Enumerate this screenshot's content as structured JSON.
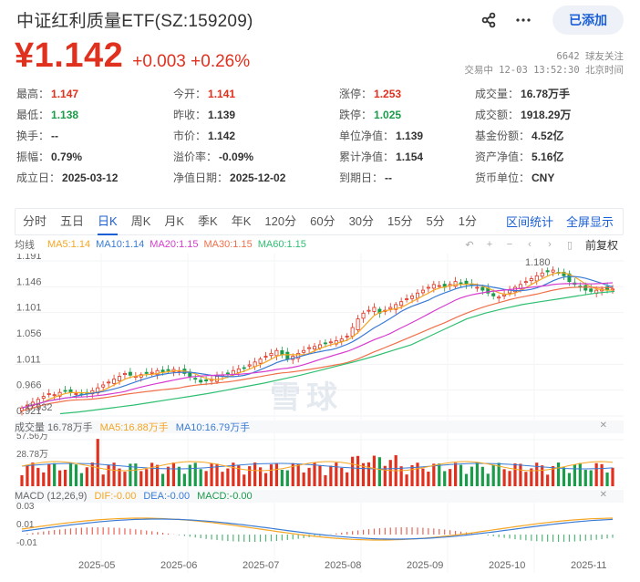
{
  "header": {
    "title": "中证红利质量ETF(SZ:159209)",
    "price": "¥1.142",
    "change": "+0.003 +0.26%",
    "followers": "6642 球友关注",
    "status": "交易中 12-03 13:52:30 北京时间",
    "added_label": "已添加",
    "share_icon": "share-icon",
    "more_icon": "more-icon"
  },
  "stats": [
    {
      "key": "最高：",
      "value": "1.147",
      "color": "red"
    },
    {
      "key": "今开：",
      "value": "1.141",
      "color": "red"
    },
    {
      "key": "涨停：",
      "value": "1.253",
      "color": "red"
    },
    {
      "key": "成交量：",
      "value": "16.78万手",
      "color": ""
    },
    {
      "key": "最低：",
      "value": "1.138",
      "color": "green"
    },
    {
      "key": "昨收：",
      "value": "1.139",
      "color": ""
    },
    {
      "key": "跌停：",
      "value": "1.025",
      "color": "green"
    },
    {
      "key": "成交额：",
      "value": "1918.29万",
      "color": ""
    },
    {
      "key": "换手：",
      "value": "--",
      "color": ""
    },
    {
      "key": "市价：",
      "value": "1.142",
      "color": ""
    },
    {
      "key": "单位净值：",
      "value": "1.139",
      "color": ""
    },
    {
      "key": "基金份额：",
      "value": "4.52亿",
      "color": ""
    },
    {
      "key": "振幅：",
      "value": "0.79%",
      "color": ""
    },
    {
      "key": "溢价率：",
      "value": "-0.09%",
      "color": ""
    },
    {
      "key": "累计净值：",
      "value": "1.154",
      "color": ""
    },
    {
      "key": "资产净值：",
      "value": "5.16亿",
      "color": ""
    },
    {
      "key": "成立日：",
      "value": "2025-03-12",
      "color": ""
    },
    {
      "key": "净值日期：",
      "value": "2025-12-02",
      "color": ""
    },
    {
      "key": "到期日：",
      "value": "--",
      "color": ""
    },
    {
      "key": "货币单位：",
      "value": "CNY",
      "color": ""
    }
  ],
  "chart_tabs": [
    "分时",
    "五日",
    "日K",
    "周K",
    "月K",
    "季K",
    "年K",
    "120分",
    "60分",
    "30分",
    "15分",
    "5分",
    "1分"
  ],
  "active_tab": "日K",
  "chart_links": [
    "区间统计",
    "全屏显示"
  ],
  "ma_label": "均线",
  "ma_legend": [
    {
      "label": "MA5:1.14",
      "color": "#f5a623"
    },
    {
      "label": "MA10:1.14",
      "color": "#3a7bd5"
    },
    {
      "label": "MA20:1.15",
      "color": "#d63ccf"
    },
    {
      "label": "MA30:1.15",
      "color": "#f0704a"
    },
    {
      "label": "MA60:1.15",
      "color": "#2fbf71"
    }
  ],
  "tools": [
    "↶",
    "+",
    "−",
    "‹",
    "›",
    "▯"
  ],
  "adjust_label": "前复权",
  "volume_header": {
    "label": "成交量 16.78万手",
    "ma5": "MA5:16.88万手",
    "ma10": "MA10:16.79万手"
  },
  "macd_header": {
    "label": "MACD (12,26,9)",
    "dif": "DIF:-0.00",
    "dea": "DEA:-0.00",
    "macd": "MACD:-0.00"
  },
  "watermark": "雪球",
  "chart_data": {
    "type": "candlestick",
    "title": "中证红利质量ETF 日K",
    "price_axis": {
      "ticks": [
        "1.191",
        "1.146",
        "1.101",
        "1.056",
        "1.011",
        "0.966",
        "0.921"
      ],
      "range": [
        0.921,
        1.191
      ]
    },
    "annotations": {
      "high": "1.180",
      "low": "0.932"
    },
    "x_ticks": [
      "2025-05",
      "2025-06",
      "2025-07",
      "2025-08",
      "2025-09",
      "2025-10",
      "2025-11"
    ],
    "close_series": [
      0.935,
      0.94,
      0.945,
      0.95,
      0.955,
      0.96,
      0.958,
      0.962,
      0.965,
      0.963,
      0.96,
      0.958,
      0.96,
      0.965,
      0.97,
      0.975,
      0.98,
      0.985,
      0.99,
      0.995,
      0.992,
      0.99,
      0.993,
      0.995,
      0.997,
      1.0,
      0.998,
      1.0,
      1.002,
      1.0,
      0.995,
      0.99,
      0.985,
      0.98,
      0.982,
      0.985,
      0.99,
      0.992,
      0.995,
      1.0,
      1.003,
      1.005,
      1.01,
      1.015,
      1.02,
      1.025,
      1.03,
      1.035,
      1.028,
      1.02,
      1.025,
      1.03,
      1.035,
      1.04,
      1.042,
      1.045,
      1.048,
      1.05,
      1.052,
      1.055,
      1.06,
      1.075,
      1.09,
      1.1,
      1.105,
      1.11,
      1.1,
      1.105,
      1.11,
      1.115,
      1.12,
      1.125,
      1.13,
      1.135,
      1.14,
      1.145,
      1.15,
      1.148,
      1.145,
      1.15,
      1.155,
      1.152,
      1.15,
      1.148,
      1.145,
      1.14,
      1.135,
      1.13,
      1.128,
      1.132,
      1.14,
      1.145,
      1.15,
      1.155,
      1.16,
      1.165,
      1.17,
      1.172,
      1.175,
      1.17,
      1.165,
      1.155,
      1.15,
      1.145,
      1.14,
      1.138,
      1.14,
      1.142,
      1.14,
      1.142
    ],
    "ma60_series": [
      0.925,
      0.928,
      0.932,
      0.936,
      0.94,
      0.945,
      0.95,
      0.955,
      0.96,
      0.966,
      0.972,
      0.978,
      0.985,
      0.992,
      1.0,
      1.008,
      1.016,
      1.025,
      1.035,
      1.045,
      1.06,
      1.075,
      1.09,
      1.1,
      1.108,
      1.115,
      1.12,
      1.125,
      1.13,
      1.135,
      1.138
    ],
    "volume_axis": {
      "ticks": [
        "57.56万",
        "28.78万"
      ]
    },
    "macd_axis": {
      "ticks": [
        "0.03",
        "0.01",
        "-0.01"
      ]
    },
    "legend": [
      "MA5",
      "MA10",
      "MA20",
      "MA30",
      "MA60"
    ]
  }
}
